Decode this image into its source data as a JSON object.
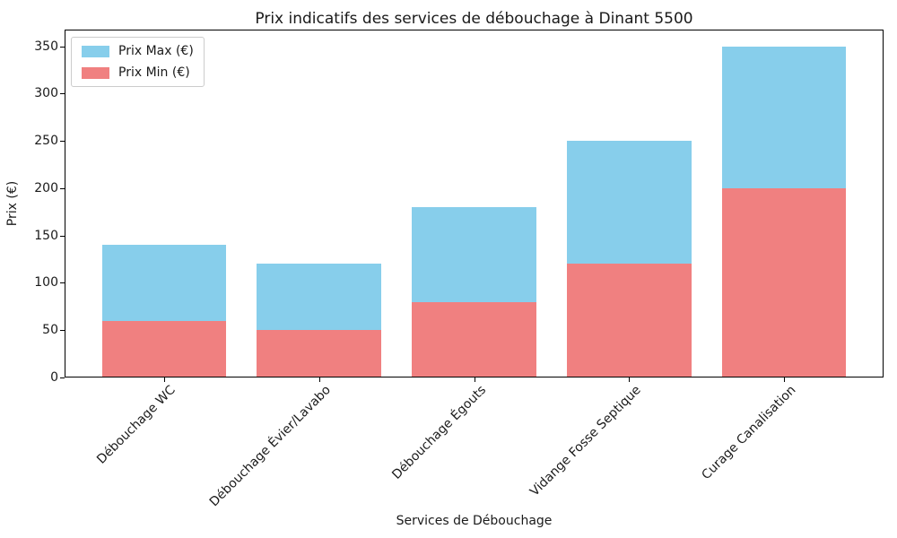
{
  "chart_data": {
    "type": "bar",
    "title": "Prix indicatifs des services de débouchage à Dinant 5500",
    "xlabel": "Services de Débouchage",
    "ylabel": "Prix (€)",
    "categories": [
      "Débouchage WC",
      "Débouchage Évier/Lavabo",
      "Débouchage Égouts",
      "Vidange Fosse Septique",
      "Curage Canalisation"
    ],
    "series": [
      {
        "name": "Prix Max (€)",
        "color": "#87CEEB",
        "values": [
          140,
          120,
          180,
          250,
          350
        ]
      },
      {
        "name": "Prix Min (€)",
        "color": "#F08080",
        "values": [
          60,
          50,
          80,
          120,
          200
        ]
      }
    ],
    "bar_style": "overlaid",
    "yticks": [
      0,
      50,
      100,
      150,
      200,
      250,
      300,
      350
    ],
    "ylim": [
      0,
      367.5
    ],
    "grid": false,
    "legend_position": "upper left",
    "axis_color": "#000000",
    "text_color": "#1a1a1a",
    "xtick_rotation": -45
  }
}
